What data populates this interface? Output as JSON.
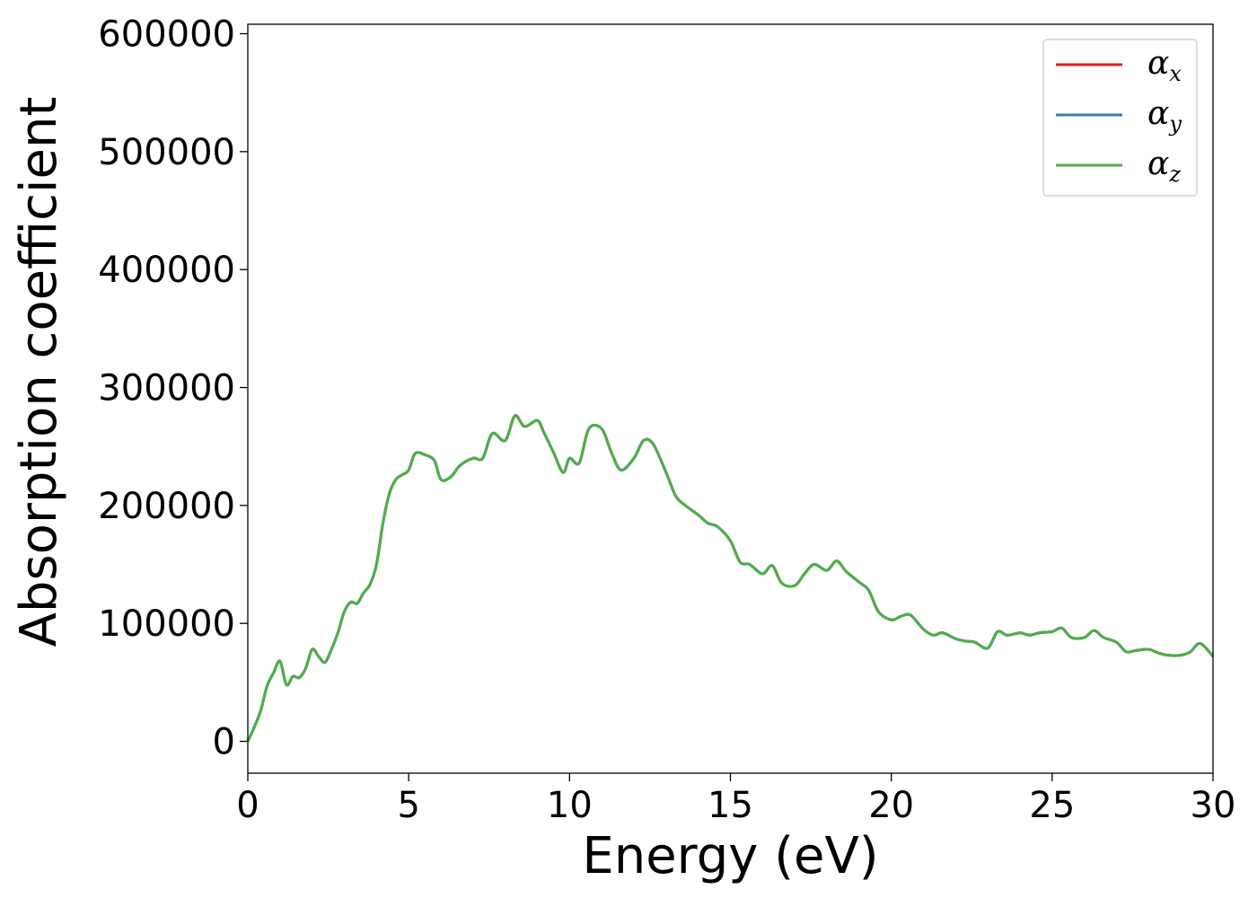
{
  "chart_data": {
    "type": "line",
    "title": "",
    "xlabel": "Energy (eV)",
    "ylabel": "Absorption coefficient",
    "xlim": [
      0,
      30
    ],
    "ylim": [
      -27000,
      608000
    ],
    "xticks": [
      0,
      5,
      10,
      15,
      20,
      25,
      30
    ],
    "yticks": [
      0,
      100000,
      200000,
      300000,
      400000,
      500000,
      600000
    ],
    "xtick_labels": [
      "0",
      "5",
      "10",
      "15",
      "20",
      "25",
      "30"
    ],
    "ytick_labels": [
      "0",
      "100000",
      "200000",
      "300000",
      "400000",
      "500000",
      "600000"
    ],
    "grid": false,
    "legend_position": "top-right",
    "series": [
      {
        "name": "α_x",
        "color": "#e41a1c",
        "x": [
          0,
          0.2,
          0.4,
          0.6,
          0.8,
          1.0,
          1.2,
          1.4,
          1.6,
          1.8,
          2.0,
          2.2,
          2.4,
          2.6,
          2.8,
          3.0,
          3.2,
          3.4,
          3.6,
          3.8,
          4.0,
          4.2,
          4.4,
          4.6,
          4.8,
          5.0,
          5.2,
          5.5,
          5.8,
          6.0,
          6.3,
          6.6,
          7.0,
          7.3,
          7.6,
          8.0,
          8.3,
          8.6,
          9.0,
          9.2,
          9.5,
          9.8,
          10.0,
          10.3,
          10.6,
          11.0,
          11.3,
          11.6,
          12.0,
          12.3,
          12.6,
          13.0,
          13.3,
          13.6,
          14.0,
          14.3,
          14.6,
          15.0,
          15.3,
          15.6,
          16.0,
          16.3,
          16.6,
          17.0,
          17.3,
          17.6,
          18.0,
          18.3,
          18.6,
          19.0,
          19.3,
          19.6,
          20.0,
          20.3,
          20.6,
          21.0,
          21.3,
          21.6,
          22.0,
          22.3,
          22.6,
          23.0,
          23.3,
          23.6,
          24.0,
          24.3,
          24.6,
          25.0,
          25.3,
          25.6,
          26.0,
          26.3,
          26.6,
          27.0,
          27.3,
          27.6,
          28.0,
          28.3,
          28.6,
          29.0,
          29.3,
          29.6,
          30.0
        ],
        "values": [
          0,
          12000,
          26000,
          47000,
          58000,
          68000,
          48000,
          55000,
          54000,
          62000,
          78000,
          72000,
          67000,
          78000,
          92000,
          110000,
          118000,
          117000,
          126000,
          133000,
          150000,
          185000,
          210000,
          222000,
          226000,
          230000,
          244000,
          243000,
          238000,
          222000,
          224000,
          234000,
          240000,
          240000,
          261000,
          255000,
          276000,
          267000,
          272000,
          262000,
          245000,
          228000,
          240000,
          236000,
          265000,
          265000,
          245000,
          230000,
          240000,
          255000,
          252000,
          228000,
          208000,
          200000,
          192000,
          185000,
          182000,
          170000,
          152000,
          150000,
          142000,
          149000,
          134000,
          132000,
          142000,
          150000,
          145000,
          153000,
          144000,
          135000,
          128000,
          110000,
          103000,
          106000,
          107000,
          95000,
          90000,
          92000,
          87000,
          85000,
          84000,
          79000,
          93000,
          90000,
          92000,
          90000,
          92000,
          93000,
          96000,
          88000,
          88000,
          94000,
          88000,
          84000,
          76000,
          77000,
          78000,
          75000,
          73000,
          73000,
          76000,
          83000,
          72000
        ],
        "values_note": ""
      },
      {
        "name": "α_y",
        "color": "#377eb8",
        "x": [
          0,
          0.2,
          0.4,
          0.6,
          0.8,
          1.0,
          1.2,
          1.4,
          1.6,
          1.8,
          2.0,
          2.2,
          2.4,
          2.6,
          2.8,
          3.0,
          3.2,
          3.4,
          3.6,
          3.8,
          4.0,
          4.2,
          4.4,
          4.6,
          4.8,
          5.0,
          5.2,
          5.5,
          5.8,
          6.0,
          6.3,
          6.6,
          7.0,
          7.3,
          7.6,
          8.0,
          8.3,
          8.6,
          9.0,
          9.2,
          9.5,
          9.8,
          10.0,
          10.3,
          10.6,
          11.0,
          11.3,
          11.6,
          12.0,
          12.3,
          12.6,
          13.0,
          13.3,
          13.6,
          14.0,
          14.3,
          14.6,
          15.0,
          15.3,
          15.6,
          16.0,
          16.3,
          16.6,
          17.0,
          17.3,
          17.6,
          18.0,
          18.3,
          18.6,
          19.0,
          19.3,
          19.6,
          20.0,
          20.3,
          20.6,
          21.0,
          21.3,
          21.6,
          22.0,
          22.3,
          22.6,
          23.0,
          23.3,
          23.6,
          24.0,
          24.3,
          24.6,
          25.0,
          25.3,
          25.6,
          26.0,
          26.3,
          26.6,
          27.0,
          27.3,
          27.6,
          28.0,
          28.3,
          28.6,
          29.0,
          29.3,
          29.6,
          30.0
        ],
        "values": [
          0,
          12000,
          26000,
          47000,
          58000,
          68000,
          48000,
          55000,
          54000,
          62000,
          78000,
          72000,
          67000,
          78000,
          92000,
          110000,
          118000,
          117000,
          126000,
          133000,
          150000,
          185000,
          210000,
          222000,
          226000,
          230000,
          244000,
          243000,
          238000,
          222000,
          224000,
          234000,
          240000,
          240000,
          261000,
          255000,
          276000,
          267000,
          272000,
          262000,
          245000,
          228000,
          240000,
          236000,
          265000,
          265000,
          245000,
          230000,
          240000,
          255000,
          252000,
          228000,
          208000,
          200000,
          192000,
          185000,
          182000,
          170000,
          152000,
          150000,
          142000,
          149000,
          134000,
          132000,
          142000,
          150000,
          145000,
          153000,
          144000,
          135000,
          128000,
          110000,
          103000,
          106000,
          107000,
          95000,
          90000,
          92000,
          87000,
          85000,
          84000,
          79000,
          93000,
          90000,
          92000,
          90000,
          92000,
          93000,
          96000,
          88000,
          88000,
          94000,
          88000,
          84000,
          76000,
          77000,
          78000,
          75000,
          73000,
          73000,
          76000,
          83000,
          72000
        ]
      },
      {
        "name": "α_z",
        "color": "#4daf4a",
        "x": [
          0,
          0.2,
          0.4,
          0.6,
          0.8,
          1.0,
          1.2,
          1.4,
          1.6,
          1.8,
          2.0,
          2.2,
          2.4,
          2.6,
          2.8,
          3.0,
          3.2,
          3.4,
          3.6,
          3.8,
          4.0,
          4.2,
          4.4,
          4.6,
          4.8,
          5.0,
          5.2,
          5.5,
          5.8,
          6.0,
          6.3,
          6.6,
          7.0,
          7.3,
          7.6,
          8.0,
          8.3,
          8.6,
          9.0,
          9.2,
          9.5,
          9.8,
          10.0,
          10.3,
          10.6,
          11.0,
          11.3,
          11.6,
          12.0,
          12.3,
          12.6,
          13.0,
          13.3,
          13.6,
          14.0,
          14.3,
          14.6,
          15.0,
          15.3,
          15.6,
          16.0,
          16.3,
          16.6,
          17.0,
          17.3,
          17.6,
          18.0,
          18.3,
          18.6,
          19.0,
          19.3,
          19.6,
          20.0,
          20.3,
          20.6,
          21.0,
          21.3,
          21.6,
          22.0,
          22.3,
          22.6,
          23.0,
          23.3,
          23.6,
          24.0,
          24.3,
          24.6,
          25.0,
          25.3,
          25.6,
          26.0,
          26.3,
          26.6,
          27.0,
          27.3,
          27.6,
          28.0,
          28.3,
          28.6,
          29.0,
          29.3,
          29.6,
          30.0
        ],
        "values": [
          0,
          12000,
          26000,
          47000,
          58000,
          68000,
          48000,
          55000,
          54000,
          62000,
          78000,
          72000,
          67000,
          78000,
          92000,
          110000,
          118000,
          117000,
          126000,
          133000,
          150000,
          185000,
          210000,
          222000,
          226000,
          230000,
          244000,
          243000,
          238000,
          222000,
          224000,
          234000,
          240000,
          240000,
          261000,
          255000,
          276000,
          267000,
          272000,
          262000,
          245000,
          228000,
          240000,
          236000,
          265000,
          265000,
          245000,
          230000,
          240000,
          255000,
          252000,
          228000,
          208000,
          200000,
          192000,
          185000,
          182000,
          170000,
          152000,
          150000,
          142000,
          149000,
          134000,
          132000,
          142000,
          150000,
          145000,
          153000,
          144000,
          135000,
          128000,
          110000,
          103000,
          106000,
          107000,
          95000,
          90000,
          92000,
          87000,
          85000,
          84000,
          79000,
          93000,
          90000,
          92000,
          90000,
          92000,
          93000,
          96000,
          88000,
          88000,
          94000,
          88000,
          84000,
          76000,
          77000,
          78000,
          75000,
          73000,
          73000,
          76000,
          83000,
          72000
        ]
      }
    ],
    "legend": [
      {
        "symbol": "α",
        "sub": "x",
        "color": "#e41a1c"
      },
      {
        "symbol": "α",
        "sub": "y",
        "color": "#377eb8"
      },
      {
        "symbol": "α",
        "sub": "z",
        "color": "#4daf4a"
      }
    ]
  }
}
